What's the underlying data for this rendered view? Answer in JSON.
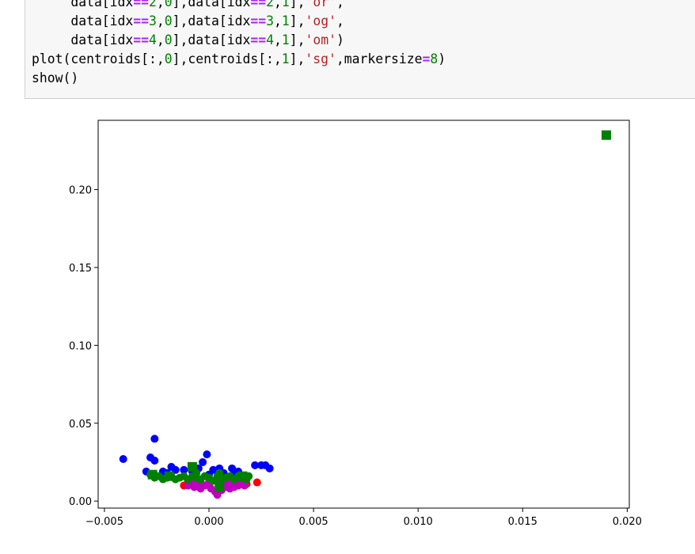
{
  "code_cell": {
    "lines": [
      [
        {
          "t": "     data[idx"
        },
        {
          "t": "==",
          "c": "o"
        },
        {
          "t": "2",
          "c": "n"
        },
        {
          "t": ","
        },
        {
          "t": "0",
          "c": "n"
        },
        {
          "t": "],data[idx"
        },
        {
          "t": "==",
          "c": "o"
        },
        {
          "t": "2",
          "c": "n"
        },
        {
          "t": ","
        },
        {
          "t": "1",
          "c": "n"
        },
        {
          "t": "],"
        },
        {
          "t": "'or'",
          "c": "s"
        },
        {
          "t": ","
        }
      ],
      [
        {
          "t": "     data[idx"
        },
        {
          "t": "==",
          "c": "o"
        },
        {
          "t": "3",
          "c": "n"
        },
        {
          "t": ","
        },
        {
          "t": "0",
          "c": "n"
        },
        {
          "t": "],data[idx"
        },
        {
          "t": "==",
          "c": "o"
        },
        {
          "t": "3",
          "c": "n"
        },
        {
          "t": ","
        },
        {
          "t": "1",
          "c": "n"
        },
        {
          "t": "],"
        },
        {
          "t": "'og'",
          "c": "s"
        },
        {
          "t": ","
        }
      ],
      [
        {
          "t": "     data[idx"
        },
        {
          "t": "==",
          "c": "o"
        },
        {
          "t": "4",
          "c": "n"
        },
        {
          "t": ","
        },
        {
          "t": "0",
          "c": "n"
        },
        {
          "t": "],data[idx"
        },
        {
          "t": "==",
          "c": "o"
        },
        {
          "t": "4",
          "c": "n"
        },
        {
          "t": ","
        },
        {
          "t": "1",
          "c": "n"
        },
        {
          "t": "],"
        },
        {
          "t": "'om'",
          "c": "s"
        },
        {
          "t": ")"
        }
      ],
      [
        {
          "t": "plot(centroids[:,"
        },
        {
          "t": "0",
          "c": "n"
        },
        {
          "t": "],centroids[:,"
        },
        {
          "t": "1",
          "c": "n"
        },
        {
          "t": "],"
        },
        {
          "t": "'sg'",
          "c": "s"
        },
        {
          "t": ",markersize"
        },
        {
          "t": "=",
          "c": "o"
        },
        {
          "t": "8",
          "c": "n"
        },
        {
          "t": ")"
        }
      ],
      [
        {
          "t": "show()"
        }
      ]
    ]
  },
  "colors": {
    "blue": "#0000ff",
    "green": "#008000",
    "red": "#ff0000",
    "magenta": "#bf00bf"
  },
  "chart_data": {
    "type": "scatter",
    "xlim": [
      -0.0053,
      0.0201
    ],
    "ylim": [
      -0.0045,
      0.2445
    ],
    "xticks": [
      -0.005,
      0.0,
      0.005,
      0.01,
      0.015,
      0.02
    ],
    "xtick_labels": [
      "−0.005",
      "0.000",
      "0.005",
      "0.010",
      "0.015",
      "0.020"
    ],
    "yticks": [
      0.0,
      0.05,
      0.1,
      0.15,
      0.2
    ],
    "ytick_labels": [
      "0.00",
      "0.05",
      "0.10",
      "0.15",
      "0.20"
    ],
    "grid": false,
    "series": [
      {
        "marker": "circle",
        "color": "blue",
        "points": [
          [
            -0.0041,
            0.027
          ],
          [
            -0.0026,
            0.04
          ],
          [
            -0.0028,
            0.028
          ],
          [
            -0.0026,
            0.026
          ],
          [
            -0.003,
            0.019
          ],
          [
            -0.002,
            0.018
          ],
          [
            -0.0018,
            0.022
          ],
          [
            -0.0016,
            0.02
          ],
          [
            -0.0012,
            0.02
          ],
          [
            -0.0008,
            0.019
          ],
          [
            -0.0005,
            0.021
          ],
          [
            -0.0003,
            0.025
          ],
          [
            -0.0001,
            0.03
          ],
          [
            0.0002,
            0.02
          ],
          [
            0.0005,
            0.021
          ],
          [
            0.0007,
            0.018
          ],
          [
            0.0011,
            0.021
          ],
          [
            0.0014,
            0.019
          ],
          [
            0.0018,
            0.016
          ],
          [
            0.0022,
            0.023
          ],
          [
            0.0025,
            0.023
          ],
          [
            0.0027,
            0.023
          ],
          [
            0.0029,
            0.021
          ],
          [
            -0.0022,
            0.019
          ],
          [
            0.0,
            0.017
          ],
          [
            0.0012,
            0.017
          ]
        ]
      },
      {
        "marker": "circle",
        "color": "red",
        "points": [
          [
            -0.0012,
            0.01
          ],
          [
            -0.0009,
            0.011
          ],
          [
            -0.0004,
            0.012
          ],
          [
            0.0,
            0.01
          ],
          [
            0.0005,
            0.011
          ],
          [
            0.001,
            0.01
          ],
          [
            0.0014,
            0.012
          ],
          [
            0.0018,
            0.011
          ],
          [
            0.0023,
            0.012
          ],
          [
            0.0016,
            0.014
          ],
          [
            -0.001,
            0.013
          ]
        ]
      },
      {
        "marker": "circle",
        "color": "magenta",
        "points": [
          [
            -0.001,
            0.01
          ],
          [
            -0.0007,
            0.009
          ],
          [
            -0.0004,
            0.008
          ],
          [
            -0.0002,
            0.01
          ],
          [
            0.0001,
            0.008
          ],
          [
            0.0003,
            0.006
          ],
          [
            0.0004,
            0.004
          ],
          [
            0.0006,
            0.007
          ],
          [
            0.0008,
            0.009
          ],
          [
            0.001,
            0.008
          ],
          [
            0.0012,
            0.009
          ],
          [
            0.0014,
            0.01
          ],
          [
            0.0017,
            0.01
          ],
          [
            -0.0005,
            0.011
          ],
          [
            0.0,
            0.012
          ],
          [
            0.0007,
            0.011
          ],
          [
            0.001,
            0.012
          ],
          [
            0.0005,
            0.013
          ],
          [
            -0.0008,
            0.012
          ],
          [
            0.0015,
            0.012
          ]
        ]
      },
      {
        "marker": "circle",
        "color": "green",
        "points": [
          [
            -0.0028,
            0.017
          ],
          [
            -0.0026,
            0.015
          ],
          [
            -0.0024,
            0.016
          ],
          [
            -0.0022,
            0.014
          ],
          [
            -0.002,
            0.015
          ],
          [
            -0.0018,
            0.016
          ],
          [
            -0.0016,
            0.014
          ],
          [
            -0.0014,
            0.015
          ],
          [
            -0.0012,
            0.016
          ],
          [
            -0.001,
            0.014
          ],
          [
            -0.0008,
            0.016
          ],
          [
            -0.0006,
            0.015
          ],
          [
            -0.0004,
            0.014
          ],
          [
            -0.0002,
            0.016
          ],
          [
            0.0,
            0.015
          ],
          [
            0.0002,
            0.013
          ],
          [
            0.0004,
            0.016
          ],
          [
            0.0006,
            0.014
          ],
          [
            0.0008,
            0.015
          ],
          [
            0.001,
            0.016
          ],
          [
            0.0012,
            0.014
          ],
          [
            0.0014,
            0.016
          ],
          [
            0.0016,
            0.015
          ],
          [
            0.0018,
            0.014
          ],
          [
            0.0019,
            0.016
          ],
          [
            -0.0006,
            0.018
          ],
          [
            0.0005,
            0.018
          ]
        ]
      },
      {
        "marker": "square",
        "color": "green",
        "points": [
          [
            0.019,
            0.235
          ],
          [
            -0.0008,
            0.022
          ],
          [
            0.0005,
            0.009
          ],
          [
            0.0016,
            0.016
          ],
          [
            -0.0019,
            0.016
          ],
          [
            -0.0027,
            0.017
          ]
        ]
      }
    ]
  }
}
